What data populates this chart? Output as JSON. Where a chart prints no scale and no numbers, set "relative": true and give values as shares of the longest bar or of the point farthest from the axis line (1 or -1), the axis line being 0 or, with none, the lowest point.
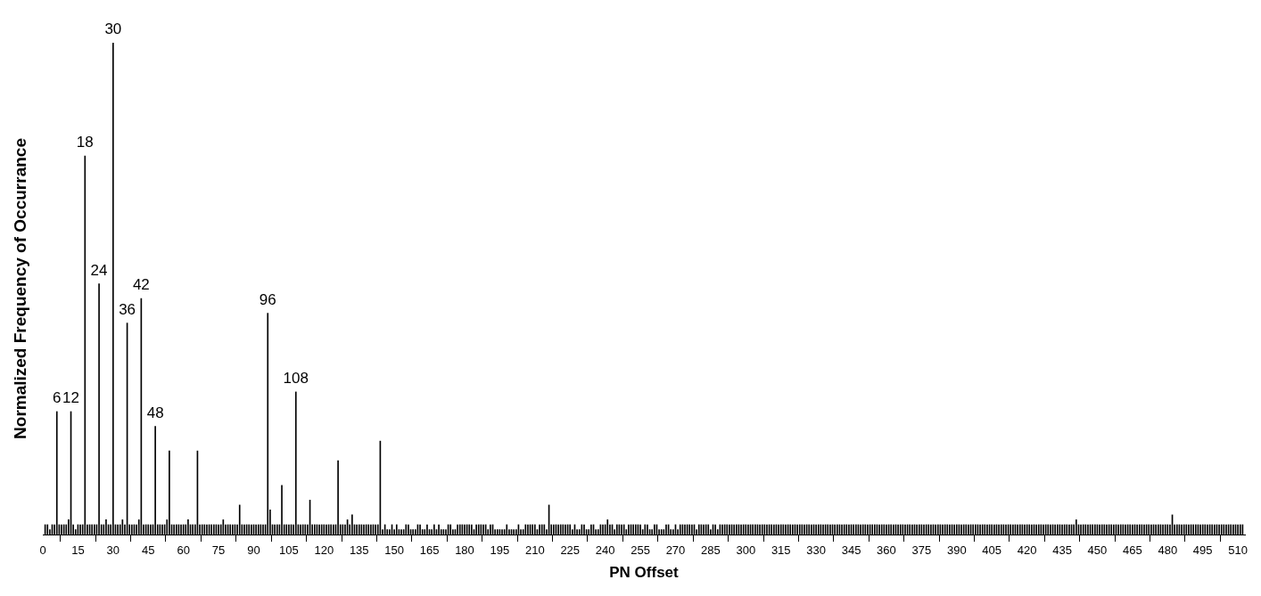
{
  "chart_data": {
    "type": "bar",
    "xlabel": "PN Offset",
    "ylabel": "Normalized Frequency of Occurrance",
    "color": "#000000",
    "xlim": [
      0,
      513
    ],
    "xticks": [
      0,
      15,
      30,
      45,
      60,
      75,
      90,
      105,
      120,
      135,
      150,
      165,
      180,
      195,
      210,
      225,
      240,
      255,
      270,
      285,
      300,
      315,
      330,
      345,
      360,
      375,
      390,
      405,
      420,
      435,
      450,
      465,
      480,
      495,
      510
    ],
    "relative": true,
    "annotations": [
      {
        "text": "6",
        "x": 6,
        "y": 0.25
      },
      {
        "text": "12",
        "x": 12,
        "y": 0.25
      },
      {
        "text": "18",
        "x": 18,
        "y": 0.77
      },
      {
        "text": "24",
        "x": 24,
        "y": 0.51
      },
      {
        "text": "30",
        "x": 30,
        "y": 1
      },
      {
        "text": "36",
        "x": 36,
        "y": 0.43
      },
      {
        "text": "42",
        "x": 42,
        "y": 0.48
      },
      {
        "text": "48",
        "x": 48,
        "y": 0.22
      },
      {
        "text": "96",
        "x": 96,
        "y": 0.45
      },
      {
        "text": "108",
        "x": 108,
        "y": 0.29
      }
    ],
    "x": [
      1,
      2,
      3,
      4,
      5,
      6,
      7,
      8,
      9,
      10,
      11,
      12,
      13,
      14,
      15,
      16,
      17,
      18,
      19,
      20,
      21,
      22,
      23,
      24,
      25,
      26,
      27,
      28,
      29,
      30,
      31,
      32,
      33,
      34,
      35,
      36,
      37,
      38,
      39,
      40,
      41,
      42,
      43,
      44,
      45,
      46,
      47,
      48,
      49,
      50,
      51,
      52,
      53,
      54,
      55,
      56,
      57,
      58,
      59,
      60,
      61,
      62,
      63,
      64,
      65,
      66,
      67,
      68,
      69,
      70,
      71,
      72,
      73,
      74,
      75,
      76,
      77,
      78,
      79,
      80,
      81,
      82,
      83,
      84,
      85,
      86,
      87,
      88,
      89,
      90,
      91,
      92,
      93,
      94,
      95,
      96,
      97,
      98,
      99,
      100,
      101,
      102,
      103,
      104,
      105,
      106,
      107,
      108,
      109,
      110,
      111,
      112,
      113,
      114,
      115,
      116,
      117,
      118,
      119,
      120,
      121,
      122,
      123,
      124,
      125,
      126,
      127,
      128,
      129,
      130,
      131,
      132,
      133,
      134,
      135,
      136,
      137,
      138,
      139,
      140,
      141,
      142,
      143,
      144,
      145,
      146,
      147,
      148,
      149,
      150,
      151,
      152,
      153,
      154,
      155,
      156,
      157,
      158,
      159,
      160,
      161,
      162,
      163,
      164,
      165,
      166,
      167,
      168,
      169,
      170,
      171,
      172,
      173,
      174,
      175,
      176,
      177,
      178,
      179,
      180,
      181,
      182,
      183,
      184,
      185,
      186,
      187,
      188,
      189,
      190,
      191,
      192,
      193,
      194,
      195,
      196,
      197,
      198,
      199,
      200,
      201,
      202,
      203,
      204,
      205,
      206,
      207,
      208,
      209,
      210,
      211,
      212,
      213,
      214,
      215,
      216,
      217,
      218,
      219,
      220,
      221,
      222,
      223,
      224,
      225,
      226,
      227,
      228,
      229,
      230,
      231,
      232,
      233,
      234,
      235,
      236,
      237,
      238,
      239,
      240,
      241,
      242,
      243,
      244,
      245,
      246,
      247,
      248,
      249,
      250,
      251,
      252,
      253,
      254,
      255,
      256,
      257,
      258,
      259,
      260,
      261,
      262,
      263,
      264,
      265,
      266,
      267,
      268,
      269,
      270,
      271,
      272,
      273,
      274,
      275,
      276,
      277,
      278,
      279,
      280,
      281,
      282,
      283,
      284,
      285,
      286,
      287,
      288,
      289,
      290,
      291,
      292,
      293,
      294,
      295,
      296,
      297,
      298,
      299,
      300,
      301,
      302,
      303,
      304,
      305,
      306,
      307,
      308,
      309,
      310,
      311,
      312,
      313,
      314,
      315,
      316,
      317,
      318,
      319,
      320,
      321,
      322,
      323,
      324,
      325,
      326,
      327,
      328,
      329,
      330,
      331,
      332,
      333,
      334,
      335,
      336,
      337,
      338,
      339,
      340,
      341,
      342,
      343,
      344,
      345,
      346,
      347,
      348,
      349,
      350,
      351,
      352,
      353,
      354,
      355,
      356,
      357,
      358,
      359,
      360,
      361,
      362,
      363,
      364,
      365,
      366,
      367,
      368,
      369,
      370,
      371,
      372,
      373,
      374,
      375,
      376,
      377,
      378,
      379,
      380,
      381,
      382,
      383,
      384,
      385,
      386,
      387,
      388,
      389,
      390,
      391,
      392,
      393,
      394,
      395,
      396,
      397,
      398,
      399,
      400,
      401,
      402,
      403,
      404,
      405,
      406,
      407,
      408,
      409,
      410,
      411,
      412,
      413,
      414,
      415,
      416,
      417,
      418,
      419,
      420,
      421,
      422,
      423,
      424,
      425,
      426,
      427,
      428,
      429,
      430,
      431,
      432,
      433,
      434,
      435,
      436,
      437,
      438,
      439,
      440,
      441,
      442,
      443,
      444,
      445,
      446,
      447,
      448,
      449,
      450,
      451,
      452,
      453,
      454,
      455,
      456,
      457,
      458,
      459,
      460,
      461,
      462,
      463,
      464,
      465,
      466,
      467,
      468,
      469,
      470,
      471,
      472,
      473,
      474,
      475,
      476,
      477,
      478,
      479,
      480,
      481,
      482,
      483,
      484,
      485,
      486,
      487,
      488,
      489,
      490,
      491,
      492,
      493,
      494,
      495,
      496,
      497,
      498,
      499,
      500,
      501,
      502,
      503,
      504,
      505,
      506,
      507,
      508,
      509,
      510,
      511,
      512
    ],
    "values": [
      0.02,
      0.02,
      0.01,
      0.02,
      0.02,
      0.25,
      0.02,
      0.02,
      0.02,
      0.02,
      0.03,
      0.25,
      0.02,
      0.01,
      0.02,
      0.02,
      0.02,
      0.77,
      0.02,
      0.02,
      0.02,
      0.02,
      0.02,
      0.51,
      0.02,
      0.02,
      0.03,
      0.02,
      0.02,
      1,
      0.02,
      0.02,
      0.02,
      0.03,
      0.02,
      0.43,
      0.02,
      0.02,
      0.02,
      0.02,
      0.03,
      0.48,
      0.02,
      0.02,
      0.02,
      0.02,
      0.02,
      0.22,
      0.02,
      0.02,
      0.02,
      0.02,
      0.03,
      0.17,
      0.02,
      0.02,
      0.02,
      0.02,
      0.02,
      0.02,
      0.02,
      0.03,
      0.02,
      0.02,
      0.02,
      0.17,
      0.02,
      0.02,
      0.02,
      0.02,
      0.02,
      0.02,
      0.02,
      0.02,
      0.02,
      0.02,
      0.03,
      0.02,
      0.02,
      0.02,
      0.02,
      0.02,
      0.02,
      0.06,
      0.02,
      0.02,
      0.02,
      0.02,
      0.02,
      0.02,
      0.02,
      0.02,
      0.02,
      0.02,
      0.02,
      0.45,
      0.05,
      0.02,
      0.02,
      0.02,
      0.02,
      0.1,
      0.02,
      0.02,
      0.02,
      0.02,
      0.02,
      0.29,
      0.02,
      0.02,
      0.02,
      0.02,
      0.02,
      0.07,
      0.02,
      0.02,
      0.02,
      0.02,
      0.02,
      0.02,
      0.02,
      0.02,
      0.02,
      0.02,
      0.02,
      0.15,
      0.02,
      0.02,
      0.02,
      0.03,
      0.02,
      0.04,
      0.02,
      0.02,
      0.02,
      0.02,
      0.02,
      0.02,
      0.02,
      0.02,
      0.02,
      0.02,
      0.02,
      0.19,
      0.01,
      0.02,
      0.01,
      0.01,
      0.02,
      0.01,
      0.02,
      0.01,
      0.01,
      0.01,
      0.02,
      0.02,
      0.01,
      0.01,
      0.01,
      0.02,
      0.02,
      0.01,
      0.01,
      0.02,
      0.01,
      0.01,
      0.02,
      0.01,
      0.02,
      0.01,
      0.01,
      0.01,
      0.02,
      0.02,
      0.01,
      0.01,
      0.02,
      0.02,
      0.02,
      0.02,
      0.02,
      0.02,
      0.02,
      0.01,
      0.02,
      0.02,
      0.02,
      0.02,
      0.02,
      0.01,
      0.02,
      0.02,
      0.01,
      0.01,
      0.01,
      0.01,
      0.01,
      0.02,
      0.01,
      0.01,
      0.01,
      0.01,
      0.02,
      0.01,
      0.01,
      0.02,
      0.02,
      0.02,
      0.02,
      0.02,
      0.01,
      0.02,
      0.02,
      0.02,
      0.01,
      0.06,
      0.02,
      0.02,
      0.02,
      0.02,
      0.02,
      0.02,
      0.02,
      0.02,
      0.02,
      0.01,
      0.02,
      0.01,
      0.01,
      0.02,
      0.02,
      0.01,
      0.01,
      0.02,
      0.02,
      0.01,
      0.01,
      0.02,
      0.02,
      0.02,
      0.03,
      0.02,
      0.02,
      0.01,
      0.02,
      0.02,
      0.02,
      0.02,
      0.01,
      0.02,
      0.02,
      0.02,
      0.02,
      0.02,
      0.02,
      0.01,
      0.02,
      0.02,
      0.01,
      0.01,
      0.02,
      0.02,
      0.01,
      0.01,
      0.01,
      0.02,
      0.02,
      0.01,
      0.01,
      0.02,
      0.01,
      0.02,
      0.02,
      0.02,
      0.02,
      0.02,
      0.02,
      0.02,
      0.01,
      0.02,
      0.02,
      0.02,
      0.02,
      0.02,
      0.01,
      0.02,
      0.02,
      0.01,
      0.02,
      0.02,
      0.02,
      0.02,
      0.02,
      0.02,
      0.02,
      0.02,
      0.02,
      0.02,
      0.02,
      0.02,
      0.02,
      0.02,
      0.02,
      0.02,
      0.02,
      0.02,
      0.02,
      0.02,
      0.02,
      0.02,
      0.02,
      0.02,
      0.02,
      0.02,
      0.02,
      0.02,
      0.02,
      0.02,
      0.02,
      0.02,
      0.02,
      0.02,
      0.02,
      0.02,
      0.02,
      0.02,
      0.02,
      0.02,
      0.02,
      0.02,
      0.02,
      0.02,
      0.02,
      0.02,
      0.02,
      0.02,
      0.02,
      0.02,
      0.02,
      0.02,
      0.02,
      0.02,
      0.02,
      0.02,
      0.02,
      0.02,
      0.02,
      0.02,
      0.02,
      0.02,
      0.02,
      0.02,
      0.02,
      0.02,
      0.02,
      0.02,
      0.02,
      0.02,
      0.02,
      0.02,
      0.02,
      0.02,
      0.02,
      0.02,
      0.02,
      0.02,
      0.02,
      0.02,
      0.02,
      0.02,
      0.02,
      0.02,
      0.02,
      0.02,
      0.02,
      0.02,
      0.02,
      0.02,
      0.02,
      0.02,
      0.02,
      0.02,
      0.02,
      0.02,
      0.02,
      0.02,
      0.02,
      0.02,
      0.02,
      0.02,
      0.02,
      0.02,
      0.02,
      0.02,
      0.02,
      0.02,
      0.02,
      0.02,
      0.02,
      0.02,
      0.02,
      0.02,
      0.02,
      0.02,
      0.02,
      0.02,
      0.02,
      0.02,
      0.02,
      0.02,
      0.02,
      0.02,
      0.02,
      0.02,
      0.02,
      0.02,
      0.02,
      0.02,
      0.02,
      0.02,
      0.02,
      0.02,
      0.02,
      0.02,
      0.02,
      0.02,
      0.02,
      0.02,
      0.02,
      0.02,
      0.02,
      0.02,
      0.02,
      0.02,
      0.02,
      0.02,
      0.02,
      0.02,
      0.02,
      0.02,
      0.03,
      0.02,
      0.02,
      0.02,
      0.02,
      0.02,
      0.02,
      0.02,
      0.02,
      0.02,
      0.02,
      0.02,
      0.02,
      0.02,
      0.02,
      0.02,
      0.02,
      0.02,
      0.02,
      0.02,
      0.02,
      0.02,
      0.02,
      0.02,
      0.02,
      0.02,
      0.02,
      0.02,
      0.02,
      0.02,
      0.02,
      0.02,
      0.02,
      0.02,
      0.02,
      0.02,
      0.02,
      0.02,
      0.02,
      0.02,
      0.02,
      0.04,
      0.02,
      0.02,
      0.02,
      0.02,
      0.02,
      0.02,
      0.02,
      0.02,
      0.02,
      0.02,
      0.02,
      0.02,
      0.02,
      0.02,
      0.02,
      0.02,
      0.02,
      0.02,
      0.02,
      0.02,
      0.02,
      0.02,
      0.02,
      0.02,
      0.02,
      0.02,
      0.02,
      0.02,
      0.02,
      0.02
    ]
  }
}
